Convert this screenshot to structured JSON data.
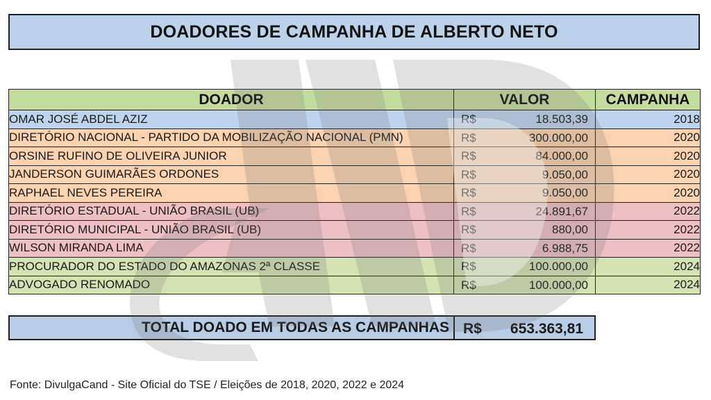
{
  "title": "DOADORES DE CAMPANHA DE ALBERTO NETO",
  "headers": {
    "donor": "DOADOR",
    "value": "VALOR",
    "campaign": "CAMPANHA"
  },
  "colors": {
    "title_bg": "#bcd1ea",
    "header_bg": "#c5dc9f",
    "total_bg": "#b9cce6",
    "year_2018": "#bed3ee",
    "year_2020": "#fbd3b0",
    "year_2022": "#eec0c2",
    "year_2024": "#d4e3b2"
  },
  "rows": [
    {
      "donor": "OMAR JOSÉ ABDEL AZIZ",
      "currency": "R$",
      "value": "18.503,39",
      "year": "2018",
      "color": "#bed3ee"
    },
    {
      "donor": "DIRETÓRIO NACIONAL - PARTIDO DA MOBILIZAÇÃO NACIONAL (PMN)",
      "currency": "R$",
      "value": "300.000,00",
      "year": "2020",
      "color": "#fbd3b0"
    },
    {
      "donor": "ORSINE RUFINO DE OLIVEIRA JUNIOR",
      "currency": "R$",
      "value": "84.000,00",
      "year": "2020",
      "color": "#fbd3b0"
    },
    {
      "donor": "JANDERSON GUIMARÃES ORDONES",
      "currency": "R$",
      "value": "9.050,00",
      "year": "2020",
      "color": "#fbd3b0"
    },
    {
      "donor": "RAPHAEL NEVES PEREIRA",
      "currency": "R$",
      "value": "9.050,00",
      "year": "2020",
      "color": "#fbd3b0"
    },
    {
      "donor": "DIRETÓRIO ESTADUAL - UNIÃO BRASIL (UB)",
      "currency": "R$",
      "value": "24.891,67",
      "year": "2022",
      "color": "#eec0c2"
    },
    {
      "donor": "DIRETÓRIO MUNICIPAL - UNIÃO BRASIL (UB)",
      "currency": "R$",
      "value": "880,00",
      "year": "2022",
      "color": "#eec0c2"
    },
    {
      "donor": "WILSON MIRANDA LIMA",
      "currency": "R$",
      "value": "6.988,75",
      "year": "2022",
      "color": "#eec0c2"
    },
    {
      "donor": "PROCURADOR DO ESTADO DO AMAZONAS 2ª CLASSE",
      "currency": "R$",
      "value": "100.000,00",
      "year": "2024",
      "color": "#d4e3b2"
    },
    {
      "donor": "ADVOGADO RENOMADO",
      "currency": "R$",
      "value": "100.000,00",
      "year": "2024",
      "color": "#d4e3b2"
    }
  ],
  "total": {
    "label": "TOTAL DOADO EM TODAS AS CAMPANHAS",
    "currency": "R$",
    "value": "653.363,81"
  },
  "source": "Fonte: DivulgaCand - Site Oficial do TSE / Eleições de 2018, 2020, 2022 e 2024"
}
